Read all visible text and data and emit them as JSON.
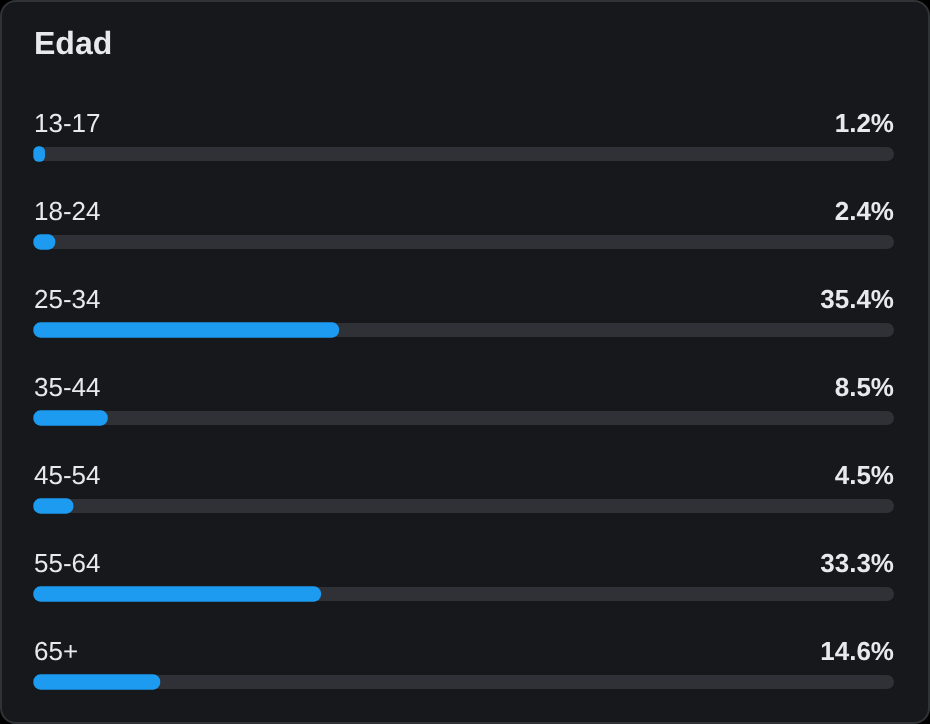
{
  "chart_data": {
    "type": "bar",
    "orientation": "horizontal",
    "title": "Edad",
    "categories": [
      "13-17",
      "18-24",
      "25-34",
      "35-44",
      "45-54",
      "55-64",
      "65+"
    ],
    "values": [
      1.2,
      2.4,
      35.4,
      8.5,
      4.5,
      33.3,
      14.6
    ],
    "value_labels": [
      "1.2%",
      "2.4%",
      "35.4%",
      "8.5%",
      "4.5%",
      "33.3%",
      "14.6%"
    ],
    "color": "#1d9bf0",
    "xlim": [
      0,
      100
    ],
    "tick_labels": "y",
    "legend": false
  }
}
